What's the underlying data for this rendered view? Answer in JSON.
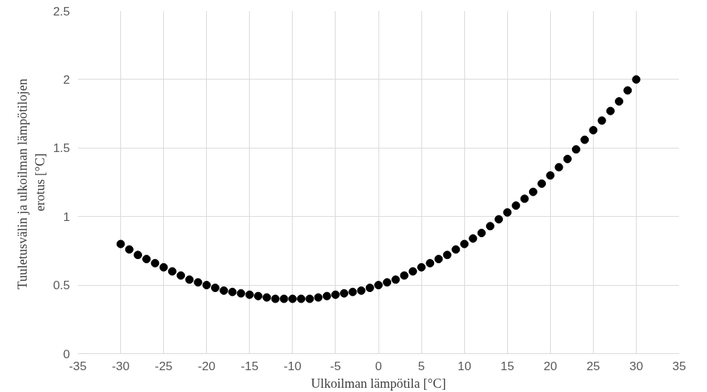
{
  "chart_data": {
    "type": "scatter",
    "xlabel": "Ulkoilman lämpötila [°C]",
    "ylabel": "Tuuletusvälin ja ulkoilman  lämpötilojen\nerotus [°C]",
    "x": [
      -30,
      -29,
      -28,
      -27,
      -26,
      -25,
      -24,
      -23,
      -22,
      -21,
      -20,
      -19,
      -18,
      -17,
      -16,
      -15,
      -14,
      -13,
      -12,
      -11,
      -10,
      -9,
      -8,
      -7,
      -6,
      -5,
      -4,
      -3,
      -2,
      -1,
      0,
      1,
      2,
      3,
      4,
      5,
      6,
      7,
      8,
      9,
      10,
      11,
      12,
      13,
      14,
      15,
      16,
      17,
      18,
      19,
      20,
      21,
      22,
      23,
      24,
      25,
      26,
      27,
      28,
      29,
      30
    ],
    "series": [
      {
        "color": "#000000",
        "values": [
          0.8,
          0.76,
          0.72,
          0.69,
          0.66,
          0.63,
          0.6,
          0.57,
          0.54,
          0.52,
          0.5,
          0.48,
          0.46,
          0.45,
          0.44,
          0.43,
          0.42,
          0.41,
          0.4,
          0.4,
          0.4,
          0.4,
          0.4,
          0.41,
          0.42,
          0.43,
          0.44,
          0.45,
          0.46,
          0.48,
          0.5,
          0.52,
          0.54,
          0.57,
          0.6,
          0.63,
          0.66,
          0.69,
          0.72,
          0.76,
          0.8,
          0.84,
          0.88,
          0.93,
          0.98,
          1.03,
          1.08,
          1.13,
          1.18,
          1.24,
          1.3,
          1.36,
          1.42,
          1.49,
          1.56,
          1.63,
          1.7,
          1.77,
          1.84,
          1.92,
          2.0
        ]
      }
    ],
    "xlim": [
      -35,
      35
    ],
    "ylim": [
      0,
      2.5
    ],
    "xticks": [
      -35,
      -30,
      -25,
      -20,
      -15,
      -10,
      -5,
      0,
      5,
      10,
      15,
      20,
      25,
      30,
      35
    ],
    "yticks": [
      0,
      0.5,
      1,
      1.5,
      2,
      2.5
    ],
    "grid": true,
    "marker": "circle"
  }
}
